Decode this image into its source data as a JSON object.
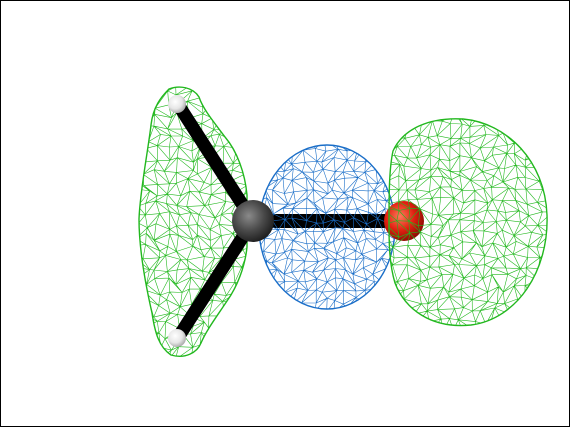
{
  "scene": {
    "background_color": "#ffffff",
    "frame_color": "#000000",
    "molecule": {
      "atoms": [
        {
          "element": "H",
          "color": "#e6e6e6"
        },
        {
          "element": "H",
          "color": "#e6e6e6"
        },
        {
          "element": "C",
          "color": "#4a4a4a"
        },
        {
          "element": "O",
          "color": "#e02010"
        }
      ],
      "bonds_color": "#000000"
    },
    "isosurfaces": [
      {
        "lobe": "hydrogen-region",
        "color": "#22b81e"
      },
      {
        "lobe": "carbon-oxygen-bond-region",
        "color": "#1a6ec8"
      },
      {
        "lobe": "oxygen-region",
        "color": "#22b81e"
      }
    ],
    "render_style": "wireframe-mesh"
  }
}
